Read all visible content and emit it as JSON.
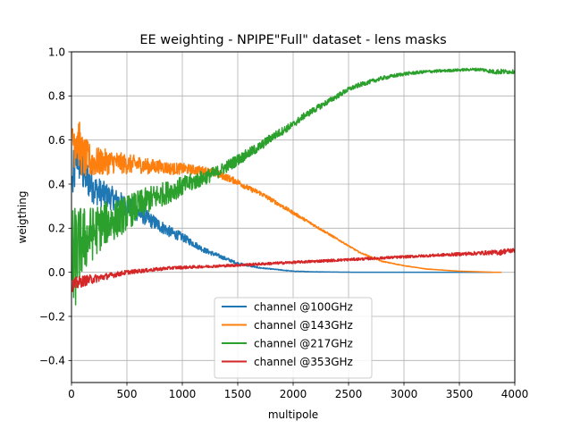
{
  "chart_data": {
    "type": "line",
    "title": "EE weighting - NPIPE\"Full\" dataset - lens masks",
    "xlabel": "multipole",
    "ylabel": "weigthing",
    "xlim": [
      0,
      4000
    ],
    "ylim": [
      -0.5,
      1.0
    ],
    "xticks": [
      0,
      500,
      1000,
      1500,
      2000,
      2500,
      3000,
      3500,
      4000
    ],
    "xtick_labels": [
      "0",
      "500",
      "1000",
      "1500",
      "2000",
      "2500",
      "3000",
      "3500",
      "4000"
    ],
    "yticks": [
      -0.4,
      -0.2,
      0.0,
      0.2,
      0.4,
      0.6,
      0.8,
      1.0
    ],
    "ytick_labels": [
      "−0.4",
      "−0.2",
      "0.0",
      "0.2",
      "0.4",
      "0.6",
      "0.8",
      "1.0"
    ],
    "grid": true,
    "legend_position": "lower-center",
    "series": [
      {
        "name": "channel @100GHz",
        "color": "#1f77b4",
        "x": [
          10,
          50,
          100,
          200,
          300,
          400,
          500,
          600,
          700,
          800,
          900,
          1000,
          1100,
          1200,
          1300,
          1400,
          1500,
          1600,
          1700,
          1800,
          1900,
          2000,
          2200,
          2400,
          2600,
          3000,
          3500,
          3800
        ],
        "y": [
          0.4,
          0.55,
          0.46,
          0.38,
          0.35,
          0.33,
          0.3,
          0.27,
          0.24,
          0.21,
          0.18,
          0.16,
          0.13,
          0.1,
          0.08,
          0.06,
          0.04,
          0.03,
          0.02,
          0.015,
          0.01,
          0.005,
          0.002,
          0.001,
          0.0,
          0.0,
          0.0,
          0.0
        ],
        "noise": [
          0.12,
          0.12,
          0.1,
          0.07,
          0.06,
          0.05,
          0.045,
          0.04,
          0.035,
          0.03,
          0.025,
          0.02,
          0.015,
          0.012,
          0.01,
          0.008,
          0.006,
          0.004,
          0.003,
          0.002,
          0.002,
          0.001,
          0.001,
          0.0,
          0.0,
          0.0,
          0.0,
          0.0
        ]
      },
      {
        "name": "channel @143GHz",
        "color": "#ff7f0e",
        "x": [
          10,
          50,
          100,
          200,
          300,
          400,
          500,
          600,
          700,
          800,
          900,
          1000,
          1100,
          1200,
          1300,
          1400,
          1500,
          1600,
          1700,
          1800,
          1900,
          2000,
          2100,
          2200,
          2300,
          2400,
          2500,
          2600,
          2800,
          3000,
          3200,
          3500,
          3700,
          3800,
          3880
        ],
        "y": [
          0.6,
          0.62,
          0.52,
          0.5,
          0.5,
          0.5,
          0.49,
          0.49,
          0.48,
          0.48,
          0.47,
          0.47,
          0.465,
          0.46,
          0.45,
          0.43,
          0.41,
          0.38,
          0.36,
          0.33,
          0.3,
          0.27,
          0.24,
          0.21,
          0.18,
          0.15,
          0.12,
          0.09,
          0.05,
          0.03,
          0.015,
          0.005,
          0.002,
          0.0,
          0.0
        ],
        "noise": [
          0.15,
          0.12,
          0.1,
          0.07,
          0.06,
          0.05,
          0.045,
          0.04,
          0.035,
          0.03,
          0.028,
          0.025,
          0.022,
          0.02,
          0.018,
          0.016,
          0.014,
          0.012,
          0.011,
          0.01,
          0.009,
          0.008,
          0.007,
          0.006,
          0.005,
          0.004,
          0.003,
          0.003,
          0.002,
          0.001,
          0.001,
          0.0,
          0.0,
          0.0,
          0.0
        ]
      },
      {
        "name": "channel @217GHz",
        "color": "#2ca02c",
        "x": [
          10,
          50,
          100,
          200,
          300,
          400,
          500,
          600,
          700,
          800,
          900,
          1000,
          1100,
          1200,
          1300,
          1400,
          1500,
          1600,
          1700,
          1800,
          1900,
          2000,
          2100,
          2200,
          2300,
          2400,
          2500,
          2600,
          2800,
          3000,
          3200,
          3400,
          3600,
          3700,
          3800,
          3850,
          4000
        ],
        "y": [
          0.0,
          0.1,
          0.14,
          0.18,
          0.22,
          0.24,
          0.27,
          0.3,
          0.33,
          0.35,
          0.37,
          0.39,
          0.41,
          0.43,
          0.45,
          0.48,
          0.51,
          0.54,
          0.57,
          0.61,
          0.64,
          0.67,
          0.71,
          0.74,
          0.77,
          0.8,
          0.83,
          0.85,
          0.88,
          0.9,
          0.91,
          0.915,
          0.92,
          0.92,
          0.91,
          0.91,
          0.91
        ],
        "noise": [
          0.3,
          0.2,
          0.16,
          0.12,
          0.1,
          0.09,
          0.08,
          0.07,
          0.06,
          0.055,
          0.05,
          0.045,
          0.04,
          0.035,
          0.03,
          0.028,
          0.026,
          0.024,
          0.022,
          0.02,
          0.018,
          0.016,
          0.015,
          0.014,
          0.013,
          0.012,
          0.011,
          0.01,
          0.009,
          0.008,
          0.007,
          0.006,
          0.006,
          0.007,
          0.01,
          0.012,
          0.008
        ]
      },
      {
        "name": "channel @353GHz",
        "color": "#d62728",
        "x": [
          10,
          50,
          100,
          200,
          300,
          400,
          500,
          600,
          700,
          800,
          900,
          1000,
          1200,
          1400,
          1600,
          1800,
          2000,
          2200,
          2400,
          2600,
          2800,
          3000,
          3200,
          3400,
          3600,
          3800,
          3870,
          3900,
          4000
        ],
        "y": [
          -0.06,
          -0.05,
          -0.04,
          -0.03,
          -0.02,
          -0.01,
          0.0,
          0.005,
          0.01,
          0.015,
          0.02,
          0.022,
          0.026,
          0.03,
          0.035,
          0.04,
          0.045,
          0.05,
          0.055,
          0.06,
          0.065,
          0.07,
          0.075,
          0.08,
          0.085,
          0.09,
          0.09,
          0.095,
          0.1
        ],
        "noise": [
          0.03,
          0.03,
          0.025,
          0.02,
          0.015,
          0.012,
          0.01,
          0.009,
          0.008,
          0.008,
          0.007,
          0.007,
          0.006,
          0.006,
          0.006,
          0.006,
          0.006,
          0.006,
          0.006,
          0.006,
          0.006,
          0.006,
          0.006,
          0.007,
          0.008,
          0.01,
          0.012,
          0.012,
          0.01
        ]
      }
    ]
  }
}
